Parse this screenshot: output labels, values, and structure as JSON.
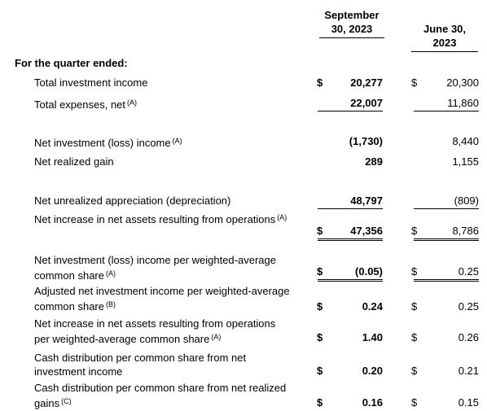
{
  "table": {
    "header": {
      "col1": "September 30, 2023",
      "col2": "June 30, 2023"
    },
    "section": "For the quarter ended:",
    "rows": [
      {
        "label": "Total investment income",
        "cells": [
          {
            "symbol": "$",
            "value": "20,277"
          },
          {
            "symbol": "$",
            "value": "20,300"
          }
        ]
      },
      {
        "label": "Total expenses, net",
        "note": "(A)",
        "cells": [
          {
            "value": "22,007"
          },
          {
            "value": "11,860"
          }
        ]
      },
      {
        "label": "Net investment (loss) income",
        "note": "(A)",
        "cells": [
          {
            "value": "(1,730)"
          },
          {
            "value": "8,440"
          }
        ]
      },
      {
        "label": "Net realized gain",
        "cells": [
          {
            "value": "289"
          },
          {
            "value": "1,155"
          }
        ]
      },
      {
        "label": "Net unrealized appreciation (depreciation)",
        "cells": [
          {
            "value": "48,797"
          },
          {
            "value": "(809)"
          }
        ]
      },
      {
        "label": "Net increase in net assets resulting from operations",
        "note": "(A)",
        "cells": [
          {
            "symbol": "$",
            "value": "47,356"
          },
          {
            "symbol": "$",
            "value": "8,786"
          }
        ]
      },
      {
        "label": "Net investment (loss) income per weighted-average common share",
        "note": "(A)",
        "cells": [
          {
            "symbol": "$",
            "value": "(0.05)"
          },
          {
            "symbol": "$",
            "value": "0.25"
          }
        ]
      },
      {
        "label": "Adjusted net investment income per weighted-average common share",
        "note": "(B)",
        "cells": [
          {
            "symbol": "$",
            "value": "0.24"
          },
          {
            "symbol": "$",
            "value": "0.25"
          }
        ]
      },
      {
        "label": "Net increase in net assets resulting from operations per weighted-average common share",
        "note": "(A)",
        "cells": [
          {
            "symbol": "$",
            "value": "1.40"
          },
          {
            "symbol": "$",
            "value": "0.26"
          }
        ]
      },
      {
        "label": "Cash distribution per common share from net investment income",
        "cells": [
          {
            "symbol": "$",
            "value": "0.20"
          },
          {
            "symbol": "$",
            "value": "0.21"
          }
        ]
      },
      {
        "label": "Cash distribution per common share from net realized gains",
        "note": "(C)",
        "cells": [
          {
            "symbol": "$",
            "value": "0.16"
          },
          {
            "symbol": "$",
            "value": "0.15"
          }
        ]
      }
    ]
  }
}
